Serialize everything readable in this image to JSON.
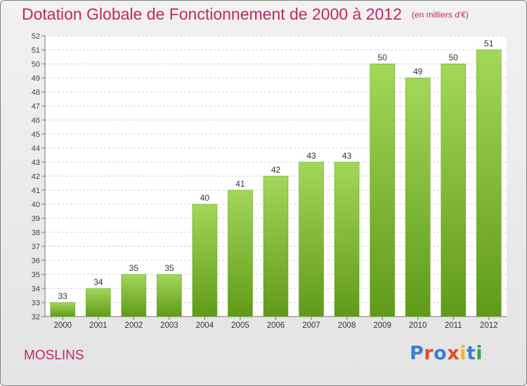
{
  "header": {
    "title": "Dotation Globale de Fonctionnement de 2000 à 2012",
    "unit": "(en milliers d'€)"
  },
  "footer": {
    "commune": "MOSLINS",
    "logo_text": "Proxiti",
    "logo_colors": [
      "#3a7fd0",
      "#e84c1f",
      "#3a7fd0",
      "#e84c1f",
      "#f2b51c",
      "#3a7fd0",
      "#3aa14a"
    ]
  },
  "colors": {
    "title": "#c0266b",
    "bar_light": "#a3d75a",
    "bar_dark": "#5f9b18",
    "grid": "#cccccc",
    "plot_bg": "#ffffff"
  },
  "chart_data": {
    "type": "bar",
    "categories": [
      "2000",
      "2001",
      "2002",
      "2003",
      "2004",
      "2005",
      "2006",
      "2007",
      "2008",
      "2009",
      "2010",
      "2011",
      "2012"
    ],
    "values": [
      33,
      34,
      35,
      35,
      40,
      41,
      42,
      43,
      43,
      50,
      49,
      50,
      51
    ],
    "data_labels": [
      "33",
      "34",
      "35",
      "35",
      "40",
      "41",
      "42",
      "43",
      "43",
      "50",
      "49",
      "50",
      "51"
    ],
    "ylim": [
      32,
      52
    ],
    "yticks": [
      "32",
      "33",
      "34",
      "35",
      "36",
      "37",
      "38",
      "39",
      "40",
      "41",
      "42",
      "43",
      "44",
      "45",
      "46",
      "47",
      "48",
      "49",
      "50",
      "51",
      "52"
    ],
    "grid": true
  }
}
